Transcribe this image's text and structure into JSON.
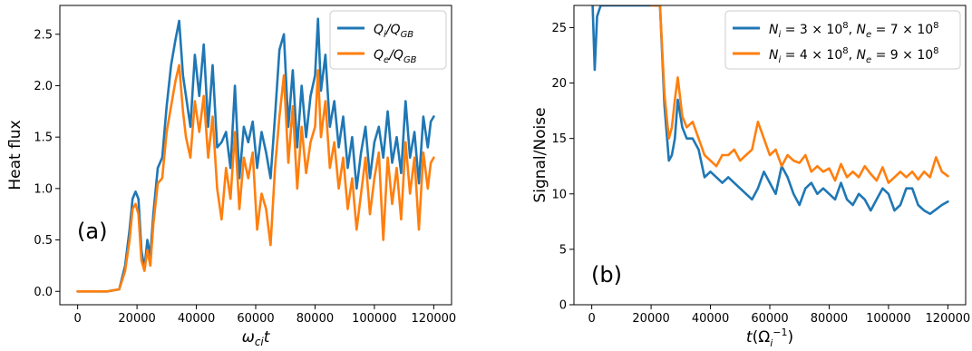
{
  "colors": {
    "blue": "#1f77b4",
    "orange": "#ff7f0e"
  },
  "chart_data": [
    {
      "type": "line",
      "panel_label": "(a)",
      "xlabel": "ω_ci t",
      "ylabel": "Heat flux",
      "xlim": [
        -6000,
        126000
      ],
      "ylim": [
        -0.13,
        2.78
      ],
      "xticks": [
        "0",
        "20000",
        "40000",
        "60000",
        "80000",
        "100000",
        "120000"
      ],
      "xtick_values": [
        0,
        20000,
        40000,
        60000,
        80000,
        100000,
        120000
      ],
      "yticks": [
        "0.0",
        "0.5",
        "1.0",
        "1.5",
        "2.0",
        "2.5"
      ],
      "ytick_values": [
        0,
        0.5,
        1,
        1.5,
        2,
        2.5
      ],
      "legend_position": "top-right",
      "series": [
        {
          "name": "Q_i/Q_GB",
          "color": "blue",
          "x": [
            0,
            10000,
            14000,
            16000,
            17500,
            18500,
            19500,
            20500,
            21500,
            22500,
            23500,
            24500,
            25500,
            27000,
            28500,
            30000,
            31500,
            33000,
            34200,
            35500,
            36500,
            38000,
            39500,
            41000,
            42500,
            44000,
            45500,
            47000,
            48500,
            50000,
            51500,
            53000,
            54500,
            56000,
            57500,
            59000,
            60500,
            62000,
            63500,
            65000,
            66500,
            68000,
            69500,
            71000,
            72500,
            74000,
            75500,
            77000,
            78500,
            80000,
            81000,
            82000,
            83500,
            85000,
            86500,
            88000,
            89500,
            91000,
            92500,
            94000,
            95500,
            97000,
            98500,
            100000,
            101500,
            103000,
            104500,
            106000,
            107500,
            109000,
            110500,
            112000,
            113500,
            115000,
            116500,
            118000,
            119000,
            120000
          ],
          "y": [
            0.0,
            0.0,
            0.02,
            0.25,
            0.6,
            0.9,
            0.97,
            0.9,
            0.4,
            0.22,
            0.5,
            0.35,
            0.75,
            1.2,
            1.3,
            1.8,
            2.2,
            2.45,
            2.63,
            2.1,
            1.9,
            1.6,
            2.3,
            1.9,
            2.4,
            1.6,
            2.2,
            1.4,
            1.45,
            1.55,
            1.2,
            2.0,
            1.1,
            1.6,
            1.45,
            1.65,
            1.2,
            1.55,
            1.35,
            1.1,
            1.7,
            2.35,
            2.5,
            1.6,
            2.15,
            1.4,
            2.0,
            1.5,
            1.9,
            2.1,
            2.65,
            1.95,
            2.3,
            1.6,
            1.85,
            1.4,
            1.7,
            1.2,
            1.5,
            1.0,
            1.35,
            1.6,
            1.1,
            1.45,
            1.6,
            1.3,
            1.75,
            1.25,
            1.5,
            1.15,
            1.85,
            1.3,
            1.55,
            1.05,
            1.7,
            1.4,
            1.65,
            1.7
          ]
        },
        {
          "name": "Q_e/Q_GB",
          "color": "orange",
          "x": [
            0,
            10000,
            14000,
            16000,
            17500,
            18500,
            19500,
            20500,
            21500,
            22500,
            23500,
            24500,
            25500,
            27000,
            28500,
            30000,
            31500,
            33000,
            34200,
            35500,
            36500,
            38000,
            39500,
            41000,
            42500,
            44000,
            45500,
            47000,
            48500,
            50000,
            51500,
            53000,
            54500,
            56000,
            57500,
            59000,
            60500,
            62000,
            63500,
            65000,
            66500,
            68000,
            69500,
            71000,
            72500,
            74000,
            75500,
            77000,
            78500,
            80000,
            81000,
            82000,
            83500,
            85000,
            86500,
            88000,
            89500,
            91000,
            92500,
            94000,
            95500,
            97000,
            98500,
            100000,
            101500,
            103000,
            104500,
            106000,
            107500,
            109000,
            110500,
            112000,
            113500,
            115000,
            116500,
            118000,
            119000,
            120000
          ],
          "y": [
            0.0,
            0.0,
            0.02,
            0.2,
            0.5,
            0.8,
            0.85,
            0.75,
            0.3,
            0.2,
            0.4,
            0.25,
            0.65,
            1.05,
            1.1,
            1.55,
            1.8,
            2.05,
            2.2,
            1.75,
            1.5,
            1.3,
            1.85,
            1.55,
            1.9,
            1.3,
            1.7,
            1.0,
            0.7,
            1.2,
            0.9,
            1.55,
            0.8,
            1.3,
            1.1,
            1.35,
            0.6,
            0.95,
            0.8,
            0.45,
            1.2,
            1.7,
            2.1,
            1.25,
            1.8,
            1.0,
            1.6,
            1.15,
            1.45,
            1.6,
            2.15,
            1.5,
            1.85,
            1.2,
            1.45,
            1.0,
            1.3,
            0.8,
            1.1,
            0.6,
            0.95,
            1.3,
            0.75,
            1.1,
            1.35,
            0.5,
            1.3,
            0.85,
            1.2,
            0.7,
            1.45,
            0.95,
            1.3,
            0.6,
            1.35,
            1.0,
            1.25,
            1.3
          ]
        }
      ]
    },
    {
      "type": "line",
      "panel_label": "(b)",
      "xlabel": "t(Ω_i^-1)",
      "ylabel": "Signal/Noise",
      "xlim": [
        -6000,
        126000
      ],
      "ylim": [
        0,
        27
      ],
      "xticks": [
        "0",
        "20000",
        "40000",
        "60000",
        "80000",
        "100000",
        "120000"
      ],
      "xtick_values": [
        0,
        20000,
        40000,
        60000,
        80000,
        100000,
        120000
      ],
      "yticks": [
        "0",
        "5",
        "10",
        "15",
        "20",
        "25"
      ],
      "ytick_values": [
        0,
        5,
        10,
        15,
        20,
        25
      ],
      "legend_position": "top-right",
      "series": [
        {
          "name": "N_i = 3 × 10^8, N_e = 7 × 10^8",
          "color": "blue",
          "x": [
            300,
            1000,
            1800,
            3000,
            5000,
            8000,
            12000,
            16000,
            20000,
            23000,
            24500,
            26000,
            27000,
            28000,
            29000,
            30500,
            32000,
            34000,
            36000,
            38000,
            40000,
            42000,
            44000,
            46000,
            48000,
            50000,
            52000,
            54000,
            56000,
            58000,
            60000,
            62000,
            64000,
            66000,
            68000,
            70000,
            72000,
            74000,
            76000,
            78000,
            80000,
            82000,
            84000,
            86000,
            88000,
            90000,
            92000,
            94000,
            96000,
            98000,
            100000,
            102000,
            104000,
            106000,
            108000,
            110000,
            112000,
            114000,
            116000,
            118000,
            120000
          ],
          "y": [
            27,
            21.2,
            26,
            27,
            27,
            27,
            27,
            27,
            27,
            27,
            18,
            13,
            13.5,
            15,
            18.5,
            16,
            15,
            15,
            14,
            11.5,
            12,
            11.5,
            11,
            11.5,
            11,
            10.5,
            10,
            9.5,
            10.5,
            12,
            11,
            10,
            12.5,
            11.5,
            10,
            9,
            10.5,
            11,
            10,
            10.5,
            10,
            9.5,
            11,
            9.5,
            9,
            10,
            9.5,
            8.5,
            9.5,
            10.5,
            10,
            8.5,
            9,
            10.5,
            10.5,
            9,
            8.5,
            8.2,
            8.6,
            9,
            9.3
          ]
        },
        {
          "name": "N_i = 4 × 10^8, N_e = 9 × 10^8",
          "color": "orange",
          "x": [
            20000,
            23000,
            24500,
            26000,
            27000,
            28000,
            29000,
            30500,
            32000,
            34000,
            36000,
            38000,
            40000,
            42000,
            44000,
            46000,
            48000,
            50000,
            52000,
            54000,
            56000,
            58000,
            60000,
            62000,
            64000,
            66000,
            68000,
            70000,
            72000,
            74000,
            76000,
            78000,
            80000,
            82000,
            84000,
            86000,
            88000,
            90000,
            92000,
            94000,
            96000,
            98000,
            100000,
            102000,
            104000,
            106000,
            108000,
            110000,
            112000,
            114000,
            116000,
            118000,
            120000
          ],
          "y": [
            27,
            27,
            19,
            15,
            16,
            18.5,
            20.5,
            17,
            16,
            16.5,
            15,
            13.5,
            13,
            12.5,
            13.5,
            13.5,
            14,
            13,
            13.5,
            14,
            16.5,
            15,
            13.5,
            14,
            12.5,
            13.5,
            13,
            12.8,
            13.5,
            12,
            12.5,
            12,
            12.3,
            11.2,
            12.7,
            11.5,
            12,
            11.5,
            12.5,
            11.8,
            11.2,
            12.4,
            11,
            11.5,
            12,
            11.5,
            12,
            11.3,
            12,
            11.5,
            13.3,
            12,
            11.6
          ]
        }
      ]
    }
  ]
}
